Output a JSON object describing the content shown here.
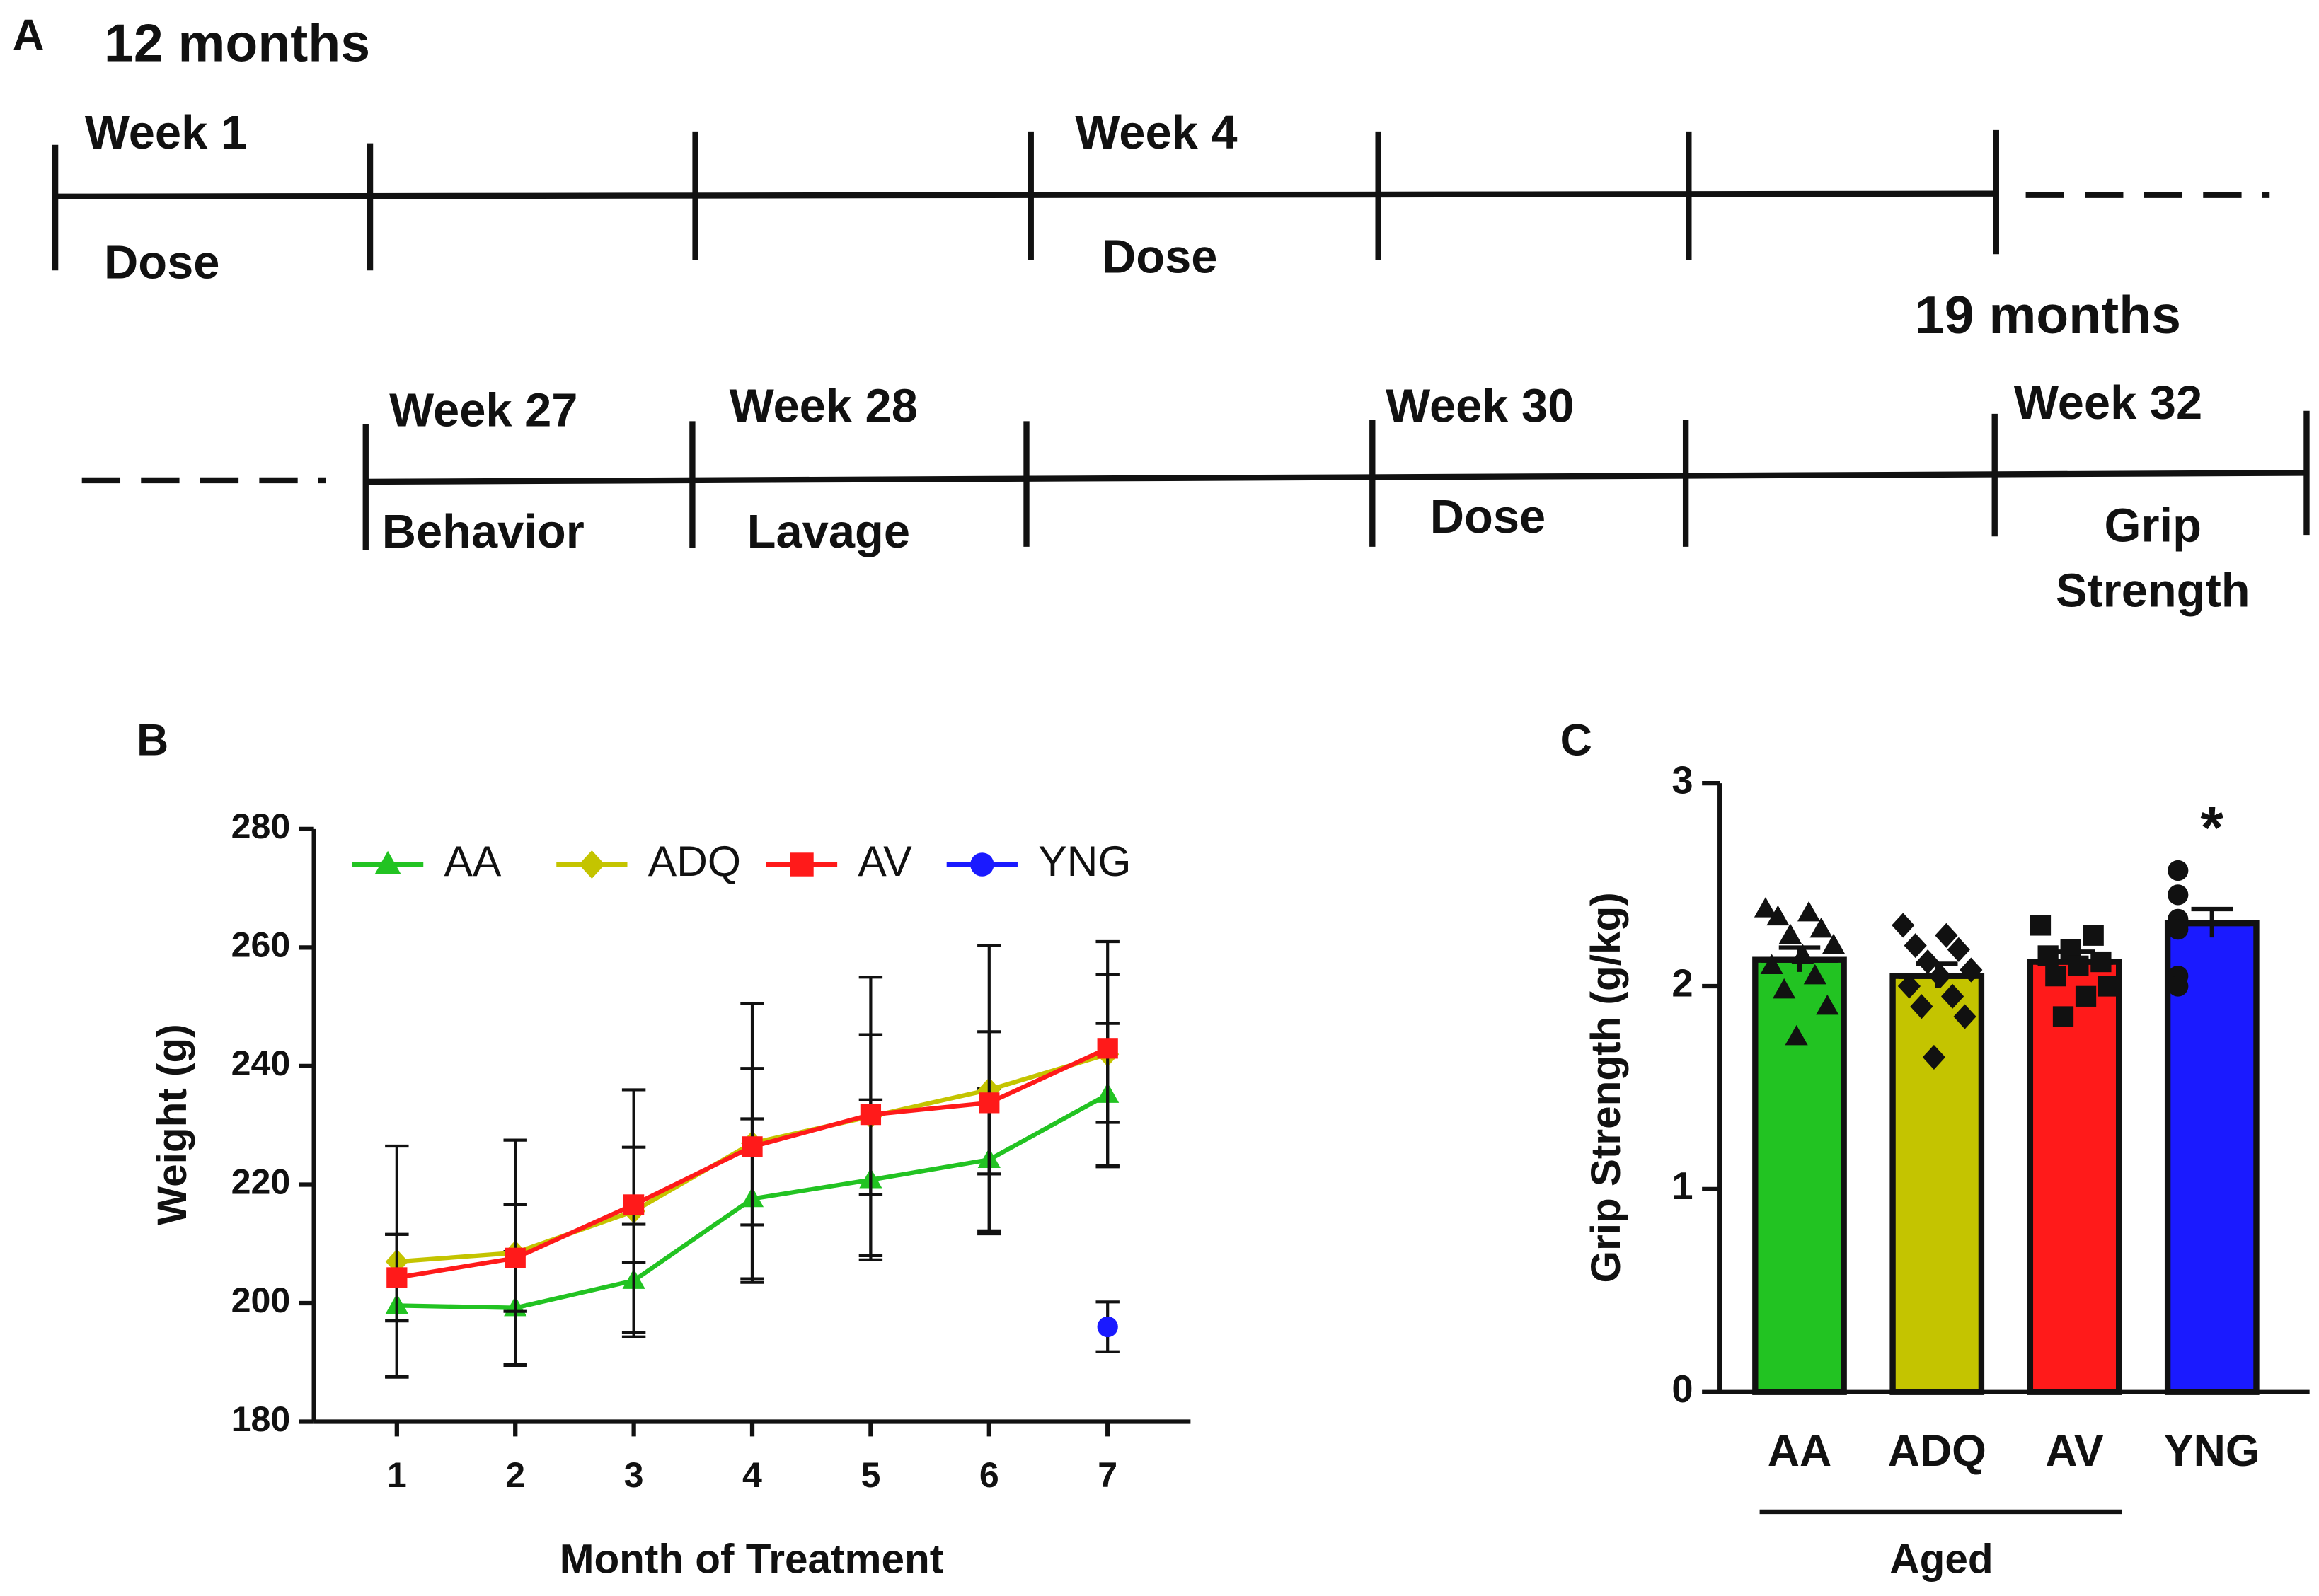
{
  "panel_labels": [
    "A",
    "B",
    "C"
  ],
  "timeline": {
    "start": "12 months",
    "end": "19 months",
    "row1": [
      {
        "week": "Week 1",
        "event": "Dose"
      },
      {
        "week": "Week 4",
        "event": "Dose"
      }
    ],
    "row2": [
      {
        "week": "Week 27",
        "event": "Behavior"
      },
      {
        "week": "Week 28",
        "event": "Lavage"
      },
      {
        "week": "Week 30",
        "event": "Dose"
      },
      {
        "week": "Week 32",
        "event": [
          "Grip",
          "Strength"
        ]
      }
    ]
  },
  "chart_data": [
    {
      "type": "line",
      "y_label": "Weight (g)",
      "x_label": "Month of Treatment",
      "x": [
        1,
        2,
        3,
        4,
        5,
        6,
        7
      ],
      "xlim": [
        0.3,
        7.7
      ],
      "xticks": [
        1,
        2,
        3,
        4,
        5,
        6,
        7
      ],
      "ylim": [
        180,
        280
      ],
      "yticks": [
        180,
        200,
        220,
        240,
        260,
        280
      ],
      "legend": "top",
      "series": [
        {
          "name": "AA",
          "color": "#22c322",
          "marker": "triangle",
          "values": [
            199.6,
            199.2,
            203.8,
            217.6,
            220.8,
            224.2,
            235.2
          ],
          "errors": [
            12,
            9.5,
            9.5,
            13.5,
            13.5,
            12,
            12
          ]
        },
        {
          "name": "ADQ",
          "color": "#c4c400",
          "marker": "diamond",
          "values": [
            207,
            208.5,
            215.5,
            227,
            231.5,
            236,
            242
          ],
          "errors": [
            19.5,
            19,
            20.5,
            23.5,
            23.5,
            24.3,
            19
          ]
        },
        {
          "name": "AV",
          "color": "#ff1a1a",
          "marker": "square",
          "values": [
            204.3,
            207.6,
            216.6,
            226.4,
            231.8,
            233.8,
            243
          ],
          "errors": [
            7.3,
            9,
            9.7,
            13.2,
            13.5,
            12,
            12.5
          ]
        },
        {
          "name": "YNG",
          "color": "#1a1aff",
          "marker": "circle",
          "values": [
            null,
            null,
            null,
            null,
            null,
            null,
            196
          ],
          "errors": [
            null,
            null,
            null,
            null,
            null,
            null,
            4.2
          ]
        }
      ]
    },
    {
      "type": "bar",
      "y_label": "Grip Strength (g/kg)",
      "categories": [
        "AA",
        "ADQ",
        "AV",
        "YNG"
      ],
      "values": [
        2.13,
        2.05,
        2.12,
        2.31
      ],
      "errors": [
        0.06,
        0.06,
        0.05,
        0.07
      ],
      "colors": [
        "#22c322",
        "#c4c400",
        "#ff1a1a",
        "#1a1aff"
      ],
      "markers": [
        "triangle",
        "diamond",
        "square",
        "circle"
      ],
      "points": [
        [
          2.38,
          2.36,
          2.34,
          2.28,
          2.25,
          2.2,
          2.15,
          2.1,
          2.05,
          1.98,
          1.9,
          1.75
        ],
        [
          2.3,
          2.25,
          2.2,
          2.18,
          2.12,
          2.08,
          2.05,
          2.0,
          1.95,
          1.9,
          1.85,
          1.65
        ],
        [
          2.3,
          2.25,
          2.18,
          2.15,
          2.12,
          2.1,
          2.05,
          2.0,
          1.95,
          1.85
        ],
        [
          2.57,
          2.45,
          2.33,
          2.3,
          2.28,
          2.05,
          2.0
        ]
      ],
      "ylim": [
        0,
        3
      ],
      "yticks": [
        0,
        1,
        2,
        3
      ],
      "annotation": "*",
      "group_label": "Aged"
    }
  ]
}
